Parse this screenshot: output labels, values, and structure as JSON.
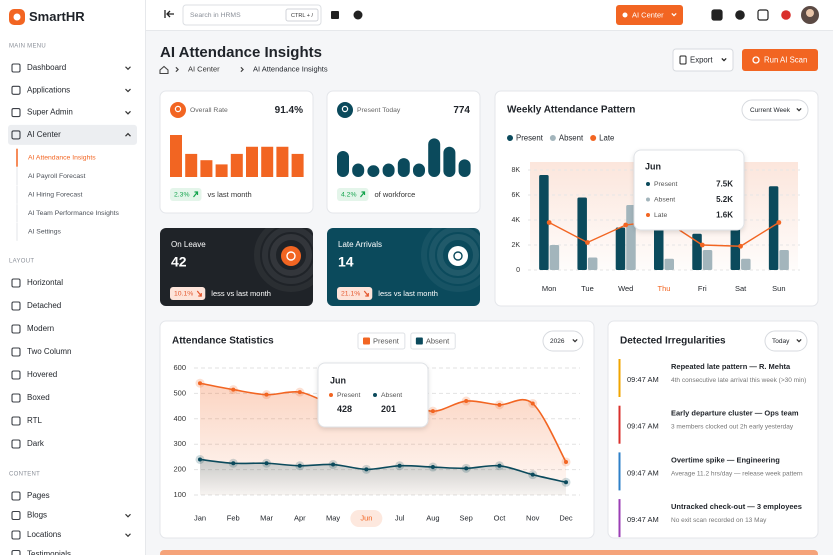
{
  "brand": "SmartHR",
  "sidebar": [
    {
      "title": "MAIN MENU",
      "items": [
        {
          "label": "Dashboard",
          "caret": true
        },
        {
          "label": "Applications",
          "caret": true
        },
        {
          "label": "Super Admin",
          "caret": true
        },
        {
          "label": "AI Center",
          "caret": true,
          "expanded": true,
          "active": true,
          "children": [
            {
              "label": "AI Attendance Insights",
              "active": true
            },
            {
              "label": "AI Payroll Forecast"
            },
            {
              "label": "AI Hiring Forecast"
            },
            {
              "label": "AI Team Performance Insights"
            },
            {
              "label": "AI Settings"
            }
          ]
        }
      ]
    },
    {
      "title": "LAYOUT",
      "items": [
        {
          "label": "Horizontal"
        },
        {
          "label": "Detached"
        },
        {
          "label": "Modern"
        },
        {
          "label": "Two Column"
        },
        {
          "label": "Hovered"
        },
        {
          "label": "Boxed"
        },
        {
          "label": "RTL"
        },
        {
          "label": "Dark"
        }
      ]
    },
    {
      "title": "CONTENT",
      "items": [
        {
          "label": "Pages"
        },
        {
          "label": "Blogs",
          "caret": true
        },
        {
          "label": "Locations",
          "caret": true
        },
        {
          "label": "Testimonials"
        }
      ]
    }
  ],
  "topbar": {
    "search_placeholder": "Search in HRMS",
    "shortcut": "CTRL + /",
    "ai_button": "AI Center"
  },
  "header": {
    "title": "AI Attendance Insights",
    "breadcrumb": [
      "AI Center",
      "AI Attendance Insights"
    ],
    "export": "Export",
    "scan": "Run AI Scan"
  },
  "stat_cards": [
    {
      "label": "Overall Rate",
      "value": "91.4%",
      "change": "2.3%",
      "note": "vs last month",
      "trend": "up",
      "bars": [
        100,
        55,
        40,
        30,
        55,
        72,
        72,
        72,
        55
      ]
    },
    {
      "label": "Present Today",
      "value": "774",
      "change": "4.2%",
      "note": "of workforce",
      "trend": "up",
      "bars": [
        62,
        32,
        28,
        32,
        45,
        32,
        92,
        72,
        42
      ]
    },
    {
      "label": "On Leave",
      "value": "42",
      "change": "10.1%",
      "note": "less vs last month",
      "trend": "down"
    },
    {
      "label": "Late Arrivals",
      "value": "14",
      "change": "21.1%",
      "note": "less vs last month",
      "trend": "down"
    }
  ],
  "chart_data": [
    {
      "type": "bar",
      "title": "Weekly Attendance Pattern",
      "dropdown": "Current Week",
      "categories": [
        "Mon",
        "Tue",
        "Wed",
        "Thu",
        "Fri",
        "Sat",
        "Sun"
      ],
      "highlight_category": "Thu",
      "ylim": [
        0,
        8000
      ],
      "yticks": [
        0,
        {
          "value": 2000,
          "label": "2K"
        },
        {
          "value": 4000,
          "label": "4K"
        },
        {
          "value": 6000,
          "label": "6K"
        },
        {
          "value": 8000,
          "label": "8K"
        }
      ],
      "grid": true,
      "series": [
        {
          "name": "Present",
          "color": "#0b4a5c",
          "values": [
            7600,
            5800,
            3400,
            6000,
            2900,
            4400,
            6700
          ]
        },
        {
          "name": "Absent",
          "color": "#a3b5bc",
          "values": [
            2000,
            1000,
            5200,
            900,
            1600,
            900,
            1600
          ]
        },
        {
          "name": "Late",
          "color": "#f26522",
          "type": "line",
          "values": [
            3800,
            2200,
            3600,
            4000,
            2000,
            1900,
            3800
          ]
        }
      ],
      "tooltip": {
        "title": "Jun",
        "values": [
          7500,
          5200,
          1600
        ],
        "value_labels": [
          "7.5K",
          "5.2K",
          "1.6K"
        ]
      }
    },
    {
      "type": "line",
      "title": "Attendance Statistics",
      "dropdown": "2026",
      "categories": [
        "Jan",
        "Feb",
        "Mar",
        "Apr",
        "May",
        "Jun",
        "Jul",
        "Aug",
        "Sep",
        "Oct",
        "Nov",
        "Dec"
      ],
      "highlight_category": "Jun",
      "ylim": [
        100,
        600
      ],
      "yticks": [
        100,
        200,
        300,
        400,
        500,
        600
      ],
      "grid": true,
      "series": [
        {
          "name": "Present",
          "color": "#f26522",
          "values": [
            540,
            515,
            495,
            505,
            455,
            428,
            470,
            430,
            470,
            455,
            460,
            230
          ]
        },
        {
          "name": "Absent",
          "color": "#0b4a5c",
          "values": [
            240,
            225,
            225,
            215,
            220,
            201,
            215,
            210,
            205,
            215,
            180,
            150
          ]
        }
      ],
      "tooltip": {
        "title": "Jun"
      }
    }
  ],
  "irregularities": {
    "title": "Detected Irregularities",
    "dropdown": "Today",
    "items": [
      {
        "time": "09:47 AM",
        "title": "Repeated late pattern — R. Mehta",
        "desc": "4th consecutive late arrival this week (>30 min)",
        "color": "#f0a500"
      },
      {
        "time": "09:47 AM",
        "title": "Early departure cluster — Ops team",
        "desc": "3 members clocked out 2h early yesterday",
        "color": "#d9302c"
      },
      {
        "time": "09:47 AM",
        "title": "Overtime spike — Engineering",
        "desc": "Average 11.2 hrs/day — release week pattern",
        "color": "#2f80c8"
      },
      {
        "time": "09:47 AM",
        "title": "Untracked check-out — 3 employees",
        "desc": "No exit scan recorded on 13 May",
        "color": "#9b3fb5"
      }
    ]
  }
}
